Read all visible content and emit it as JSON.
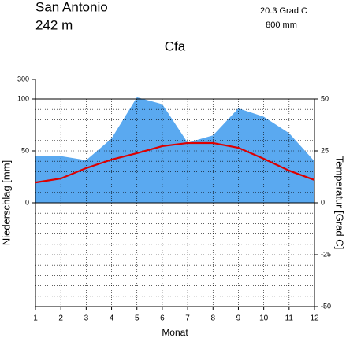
{
  "chart_data": {
    "type": "line",
    "title": "San Antonio",
    "subtitle": "242 m",
    "annotations": [
      "20.3 Grad C",
      "800 mm"
    ],
    "climate_class": "Cfa",
    "x_label": "Monat",
    "y_label": "Niederschlag [mm]",
    "y2_label": "Temperatur [Grad C]",
    "x": [
      1,
      2,
      3,
      4,
      5,
      6,
      7,
      8,
      9,
      10,
      11,
      12
    ],
    "xlim": [
      1,
      12
    ],
    "xticks": [
      1,
      2,
      3,
      4,
      5,
      6,
      7,
      8,
      9,
      10,
      11,
      12
    ],
    "ylim": [
      0,
      300
    ],
    "yticks": [
      0,
      50,
      100,
      300
    ],
    "y2lim": [
      -50,
      50
    ],
    "y2ticks": [
      -50,
      -25,
      0,
      25,
      50
    ],
    "grid": true,
    "series": [
      {
        "name": "Niederschlag",
        "type": "area",
        "axis": "y",
        "color": "#5aa9f0",
        "values": [
          45,
          45,
          41,
          62,
          117,
          95,
          58,
          65,
          91,
          83,
          67,
          40
        ]
      },
      {
        "name": "Temperatur",
        "type": "line",
        "axis": "y2",
        "color": "#dd0000",
        "values": [
          9.8,
          11.7,
          16.7,
          20.8,
          23.9,
          27.3,
          28.8,
          28.8,
          26.5,
          21.2,
          15.5,
          11.0
        ]
      }
    ]
  }
}
